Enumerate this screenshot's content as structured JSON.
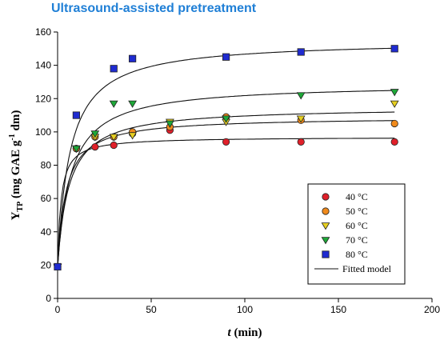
{
  "chart_data": {
    "type": "scatter",
    "title": "Ultrasound-assisted pretreatment",
    "xlabel": {
      "italic": "t",
      "rest": " (min)"
    },
    "ylabel": {
      "main": "Y",
      "sub": "TP",
      "unit_a": " (mg GAE g",
      "sup": "-1",
      "unit_b": " dm)"
    },
    "xlim": [
      0,
      200
    ],
    "ylim": [
      0,
      160
    ],
    "xticks": [
      0,
      50,
      100,
      150,
      200
    ],
    "yticks": [
      0,
      20,
      40,
      60,
      80,
      100,
      120,
      140,
      160
    ],
    "grid": false,
    "legend_position": "bottom-right",
    "series": [
      {
        "name": "40 °C",
        "marker": "circle",
        "color": "#e0202a",
        "x": [
          0,
          10,
          20,
          30,
          40,
          60,
          90,
          130,
          180
        ],
        "y": [
          19,
          90,
          91,
          92,
          99,
          101,
          94,
          94,
          94
        ],
        "fit": {
          "ymax": 97,
          "k": 1.8
        }
      },
      {
        "name": "50 °C",
        "marker": "circle",
        "color": "#f08a1c",
        "x": [
          0,
          10,
          20,
          30,
          40,
          60,
          90,
          130,
          180
        ],
        "y": [
          19,
          90,
          97,
          97,
          100,
          103,
          109,
          107,
          105
        ],
        "fit": {
          "ymax": 109,
          "k": 4.5
        }
      },
      {
        "name": "60 °C",
        "marker": "triangle-down",
        "color": "#e6cf20",
        "x": [
          0,
          10,
          20,
          30,
          40,
          60,
          90,
          130,
          180
        ],
        "y": [
          19,
          90,
          97,
          97,
          98,
          106,
          106,
          108,
          117
        ],
        "fit": {
          "ymax": 115,
          "k": 6
        }
      },
      {
        "name": "70 °C",
        "marker": "triangle-down",
        "color": "#1ea838",
        "x": [
          0,
          10,
          20,
          30,
          40,
          60,
          90,
          130,
          180
        ],
        "y": [
          19,
          90,
          99,
          117,
          117,
          105,
          108,
          122,
          124
        ],
        "fit": {
          "ymax": 129,
          "k": 7
        }
      },
      {
        "name": "80 °C",
        "marker": "square",
        "color": "#1f2bd0",
        "x": [
          0,
          10,
          30,
          40,
          90,
          130,
          180
        ],
        "y": [
          19,
          110,
          138,
          144,
          145,
          148,
          150
        ],
        "fit": {
          "ymax": 155,
          "k": 6.5
        }
      }
    ],
    "fit_label": "Fitted model",
    "y0": 19
  }
}
